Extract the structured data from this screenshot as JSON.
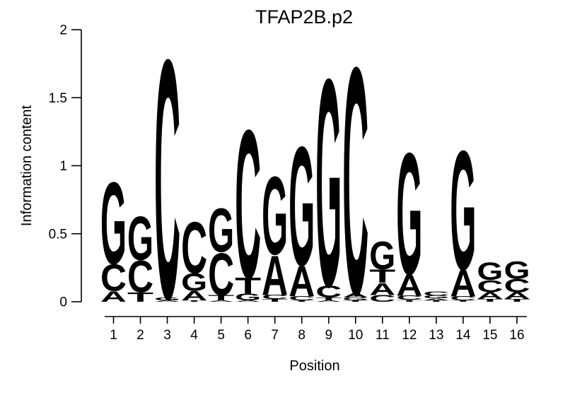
{
  "title": "TFAP2B.p2",
  "y_axis": {
    "label": "Information content",
    "ticks": [
      "0",
      "0.5",
      "1",
      "1.5",
      "2"
    ],
    "tick_values": [
      0,
      0.5,
      1,
      1.5,
      2
    ],
    "min": 0,
    "max": 2
  },
  "x_axis": {
    "label": "Position",
    "ticks": [
      "1",
      "2",
      "3",
      "4",
      "5",
      "6",
      "7",
      "8",
      "9",
      "10",
      "11",
      "12",
      "13",
      "14",
      "15",
      "16"
    ]
  },
  "colors": {
    "A": "#00C300",
    "C": "#2222DB",
    "G": "#FFA500",
    "T": "#E60000",
    "axis": "#000000",
    "background": "#ffffff"
  },
  "chart_data": {
    "type": "sequence_logo",
    "title": "TFAP2B.p2",
    "xlabel": "Position",
    "ylabel": "Information content",
    "ylim": [
      0,
      2
    ],
    "grid": false,
    "positions": [
      1,
      2,
      3,
      4,
      5,
      6,
      7,
      8,
      9,
      10,
      11,
      12,
      13,
      14,
      15,
      16
    ],
    "stack_order": "top-to-bottom",
    "stacks": [
      [
        {
          "letter": "G",
          "ic": 0.62
        },
        {
          "letter": "C",
          "ic": 0.2
        },
        {
          "letter": "A",
          "ic": 0.08
        }
      ],
      [
        {
          "letter": "G",
          "ic": 0.33
        },
        {
          "letter": "C",
          "ic": 0.24
        },
        {
          "letter": "T",
          "ic": 0.07
        }
      ],
      [
        {
          "letter": "C",
          "ic": 1.81
        },
        {
          "letter": "G",
          "ic": 0.02
        },
        {
          "letter": "A",
          "ic": 0.01
        }
      ],
      [
        {
          "letter": "C",
          "ic": 0.39
        },
        {
          "letter": "G",
          "ic": 0.13
        },
        {
          "letter": "A",
          "ic": 0.07
        },
        {
          "letter": "T",
          "ic": 0.01
        }
      ],
      [
        {
          "letter": "G",
          "ic": 0.33
        },
        {
          "letter": "C",
          "ic": 0.32
        },
        {
          "letter": "T",
          "ic": 0.04
        },
        {
          "letter": "A",
          "ic": 0.01
        }
      ],
      [
        {
          "letter": "C",
          "ic": 1.12
        },
        {
          "letter": "T",
          "ic": 0.12
        },
        {
          "letter": "G",
          "ic": 0.05
        },
        {
          "letter": "A",
          "ic": 0.01
        }
      ],
      [
        {
          "letter": "G",
          "ic": 0.59
        },
        {
          "letter": "A",
          "ic": 0.3
        },
        {
          "letter": "C",
          "ic": 0.03
        },
        {
          "letter": "T",
          "ic": 0.02
        }
      ],
      [
        {
          "letter": "G",
          "ic": 0.9
        },
        {
          "letter": "A",
          "ic": 0.23
        },
        {
          "letter": "C",
          "ic": 0.03
        },
        {
          "letter": "T",
          "ic": 0.01
        }
      ],
      [
        {
          "letter": "G",
          "ic": 1.57
        },
        {
          "letter": "C",
          "ic": 0.09
        },
        {
          "letter": "T",
          "ic": 0.02
        },
        {
          "letter": "A",
          "ic": 0.01
        }
      ],
      [
        {
          "letter": "C",
          "ic": 1.72
        },
        {
          "letter": "A",
          "ic": 0.03
        },
        {
          "letter": "G",
          "ic": 0.02
        },
        {
          "letter": "T",
          "ic": 0.01
        }
      ],
      [
        {
          "letter": "G",
          "ic": 0.21
        },
        {
          "letter": "T",
          "ic": 0.1
        },
        {
          "letter": "A",
          "ic": 0.09
        },
        {
          "letter": "C",
          "ic": 0.05
        }
      ],
      [
        {
          "letter": "G",
          "ic": 0.92
        },
        {
          "letter": "A",
          "ic": 0.16
        },
        {
          "letter": "C",
          "ic": 0.03
        },
        {
          "letter": "T",
          "ic": 0.015
        }
      ],
      [
        {
          "letter": "C",
          "ic": 0.03
        },
        {
          "letter": "G",
          "ic": 0.02
        },
        {
          "letter": "A",
          "ic": 0.015
        },
        {
          "letter": "T",
          "ic": 0.01
        }
      ],
      [
        {
          "letter": "G",
          "ic": 0.9
        },
        {
          "letter": "A",
          "ic": 0.2
        },
        {
          "letter": "C",
          "ic": 0.03
        },
        {
          "letter": "T",
          "ic": 0.01
        }
      ],
      [
        {
          "letter": "G",
          "ic": 0.13
        },
        {
          "letter": "C",
          "ic": 0.09
        },
        {
          "letter": "A",
          "ic": 0.05
        },
        {
          "letter": "T",
          "ic": 0.02
        }
      ],
      [
        {
          "letter": "G",
          "ic": 0.13
        },
        {
          "letter": "C",
          "ic": 0.1
        },
        {
          "letter": "A",
          "ic": 0.05
        },
        {
          "letter": "T",
          "ic": 0.02
        }
      ]
    ]
  }
}
